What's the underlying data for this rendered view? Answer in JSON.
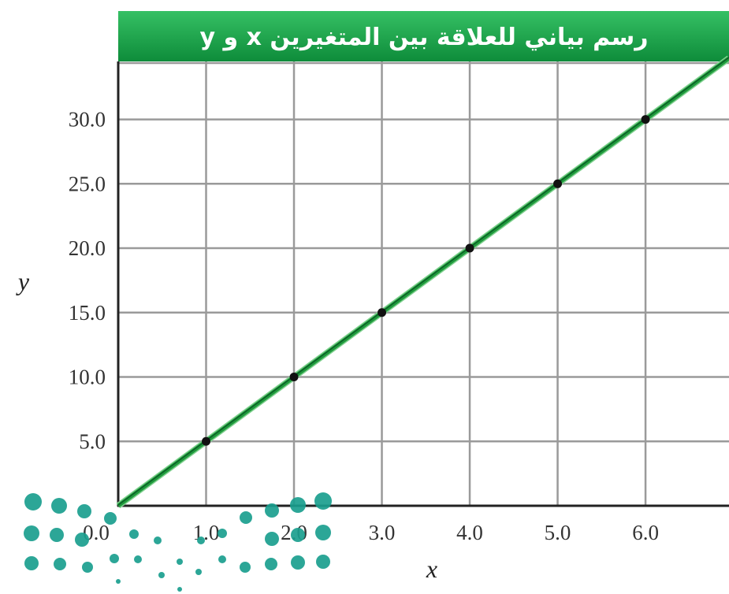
{
  "chart_data": {
    "type": "line",
    "title": "رسم بياني للعلاقة بين المتغيرين x و y",
    "xlabel": "x",
    "ylabel": "y",
    "x_ticks": [
      "0.0",
      "1.0",
      "2.0",
      "3.0",
      "4.0",
      "5.0",
      "6.0"
    ],
    "y_ticks": [
      "5.0",
      "10.0",
      "15.0",
      "20.0",
      "25.0",
      "30.0"
    ],
    "xlim": [
      0,
      6.95
    ],
    "ylim": [
      0,
      34.5
    ],
    "grid": true,
    "series": [
      {
        "points": [
          [
            1,
            5
          ],
          [
            2,
            10
          ],
          [
            3,
            15
          ],
          [
            4,
            20
          ],
          [
            5,
            25
          ],
          [
            6,
            30
          ]
        ],
        "line_extends_to_x": [
          0,
          6.95
        ]
      }
    ],
    "colors": {
      "header": "#16a64a",
      "line": "#1f9a3c",
      "grid": "#9a9a9a",
      "points": "#111111",
      "watermark": "#1a9e8e"
    }
  }
}
